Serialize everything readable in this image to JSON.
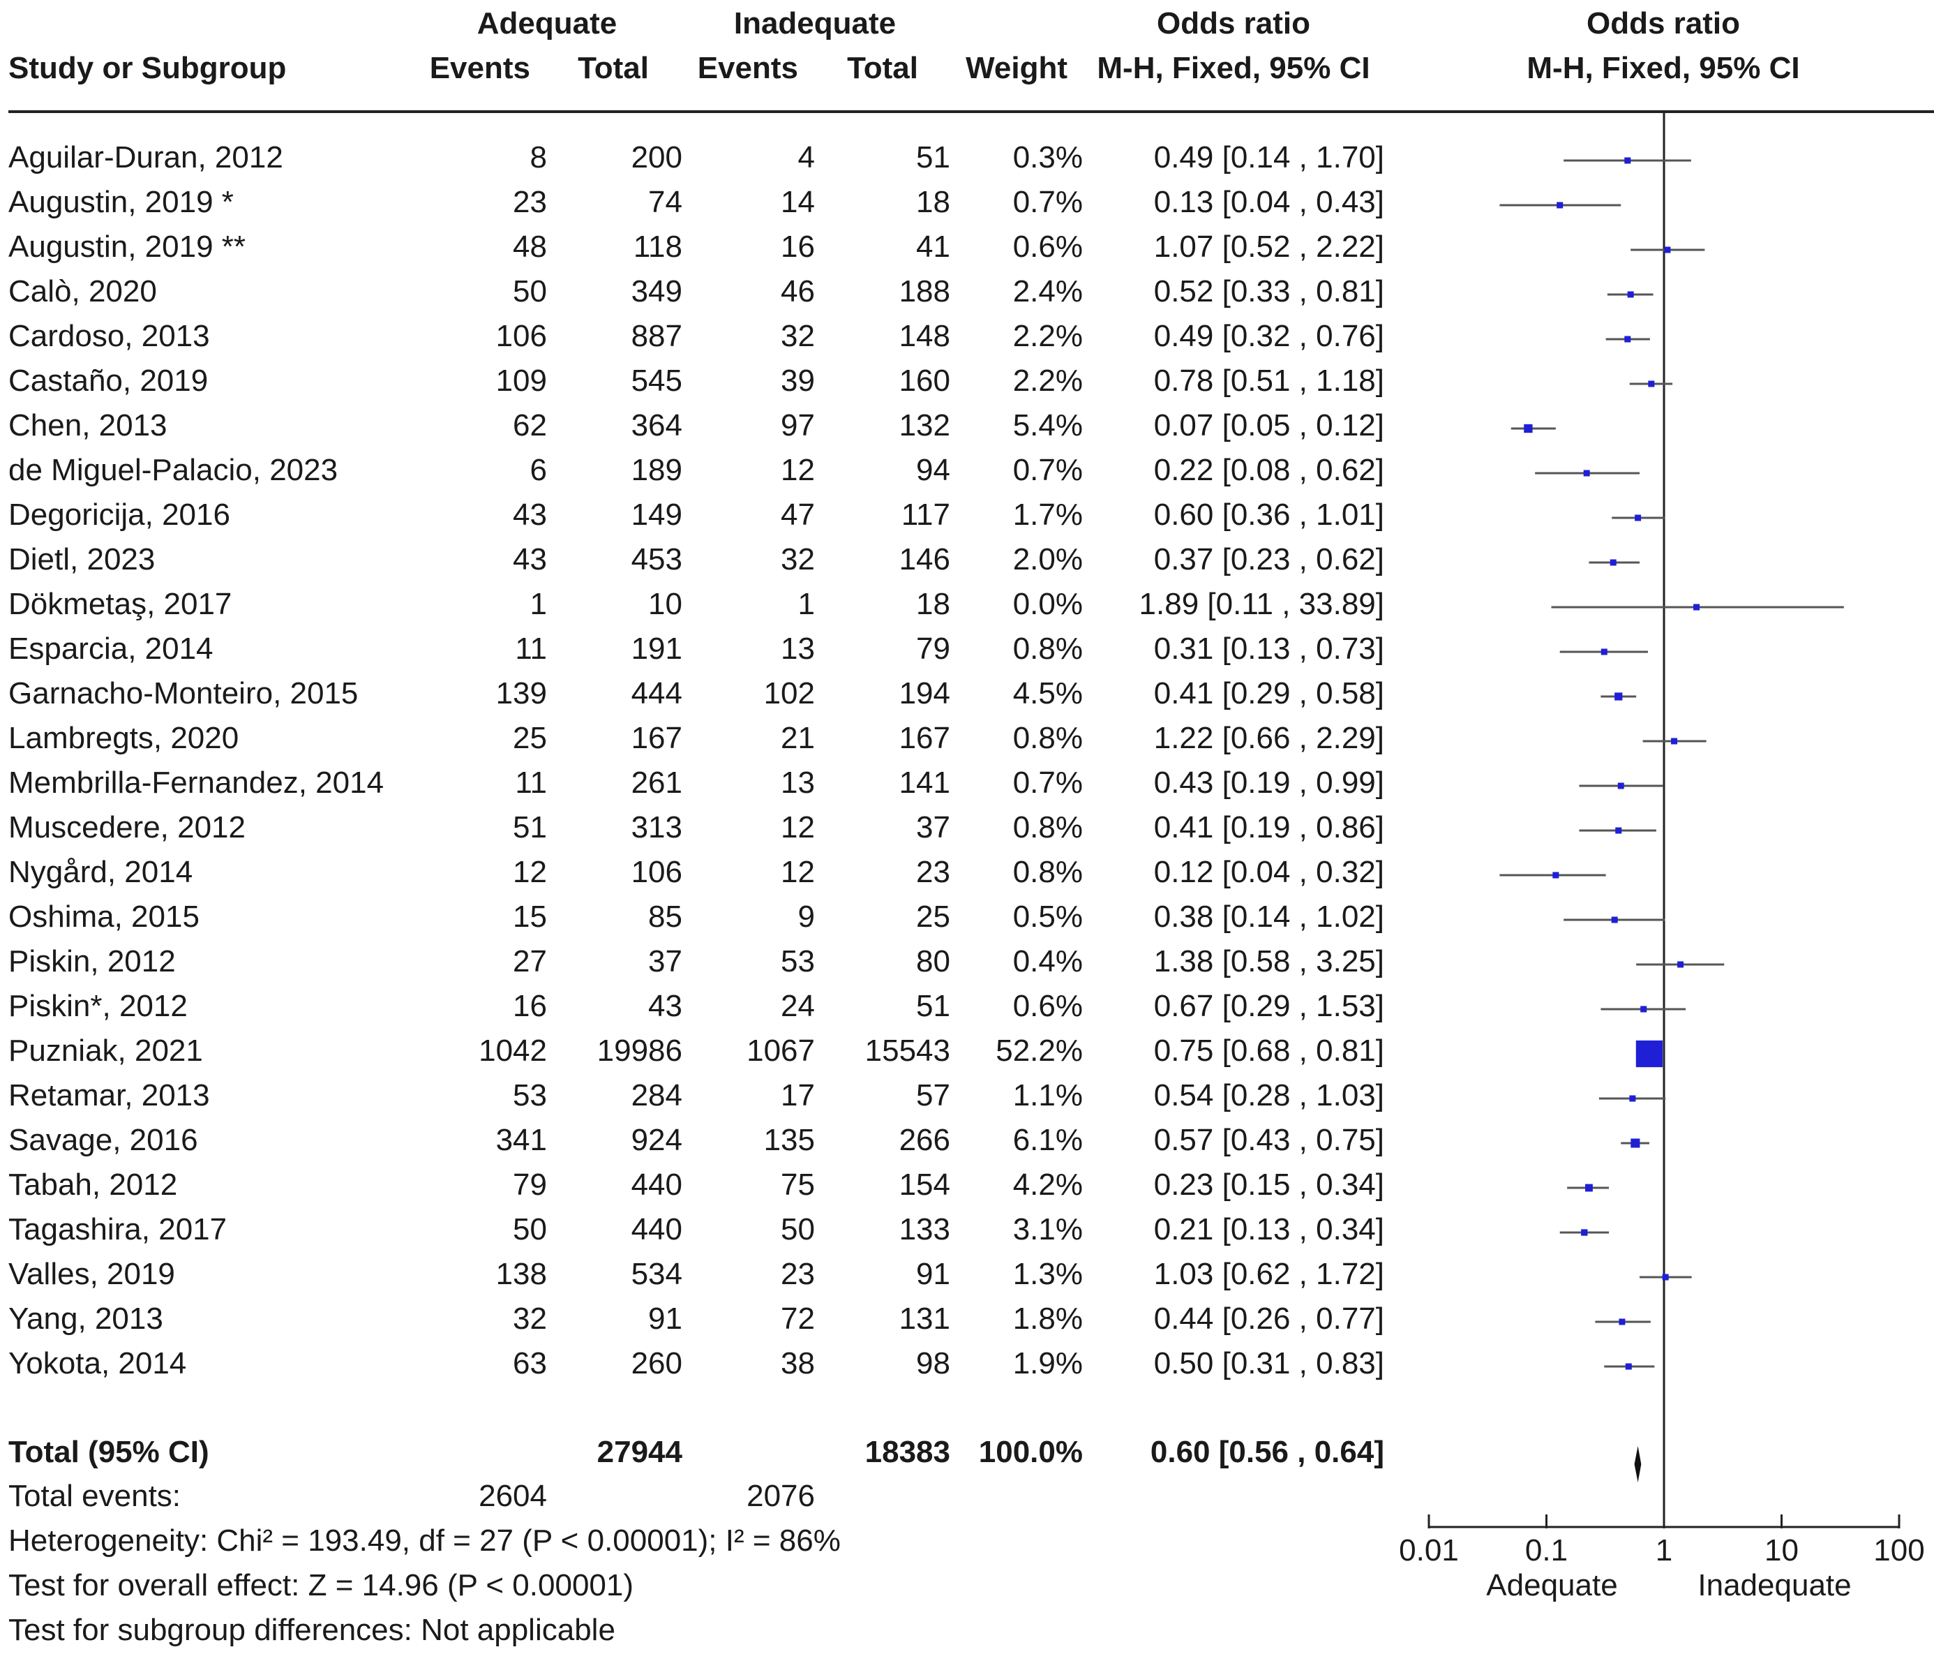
{
  "chart_data": {
    "type": "forest",
    "headers": {
      "study": "Study or Subgroup",
      "adequate": "Adequate",
      "inadequate": "Inadequate",
      "events": "Events",
      "total": "Total",
      "weight": "Weight",
      "or_title": "Odds ratio",
      "or_method": "M-H, Fixed, 95% CI"
    },
    "studies": [
      {
        "name": "Aguilar-Duran, 2012",
        "ae": "8",
        "at": "200",
        "ie": "4",
        "it": "51",
        "weight": "0.3%",
        "ci_text": "0.49 [0.14 , 1.70]",
        "or": 0.49,
        "lo": 0.14,
        "hi": 1.7,
        "w": 0.3
      },
      {
        "name": "Augustin, 2019 *",
        "ae": "23",
        "at": "74",
        "ie": "14",
        "it": "18",
        "weight": "0.7%",
        "ci_text": "0.13 [0.04 , 0.43]",
        "or": 0.13,
        "lo": 0.04,
        "hi": 0.43,
        "w": 0.7
      },
      {
        "name": "Augustin, 2019 **",
        "ae": "48",
        "at": "118",
        "ie": "16",
        "it": "41",
        "weight": "0.6%",
        "ci_text": "1.07 [0.52 , 2.22]",
        "or": 1.07,
        "lo": 0.52,
        "hi": 2.22,
        "w": 0.6
      },
      {
        "name": "Calò, 2020",
        "ae": "50",
        "at": "349",
        "ie": "46",
        "it": "188",
        "weight": "2.4%",
        "ci_text": "0.52 [0.33 , 0.81]",
        "or": 0.52,
        "lo": 0.33,
        "hi": 0.81,
        "w": 2.4
      },
      {
        "name": "Cardoso, 2013",
        "ae": "106",
        "at": "887",
        "ie": "32",
        "it": "148",
        "weight": "2.2%",
        "ci_text": "0.49 [0.32 , 0.76]",
        "or": 0.49,
        "lo": 0.32,
        "hi": 0.76,
        "w": 2.2
      },
      {
        "name": "Castaño, 2019",
        "ae": "109",
        "at": "545",
        "ie": "39",
        "it": "160",
        "weight": "2.2%",
        "ci_text": "0.78 [0.51 , 1.18]",
        "or": 0.78,
        "lo": 0.51,
        "hi": 1.18,
        "w": 2.2
      },
      {
        "name": "Chen, 2013",
        "ae": "62",
        "at": "364",
        "ie": "97",
        "it": "132",
        "weight": "5.4%",
        "ci_text": "0.07 [0.05 , 0.12]",
        "or": 0.07,
        "lo": 0.05,
        "hi": 0.12,
        "w": 5.4
      },
      {
        "name": "de Miguel-Palacio, 2023",
        "ae": "6",
        "at": "189",
        "ie": "12",
        "it": "94",
        "weight": "0.7%",
        "ci_text": "0.22 [0.08 , 0.62]",
        "or": 0.22,
        "lo": 0.08,
        "hi": 0.62,
        "w": 0.7
      },
      {
        "name": "Degoricija, 2016",
        "ae": "43",
        "at": "149",
        "ie": "47",
        "it": "117",
        "weight": "1.7%",
        "ci_text": "0.60 [0.36 , 1.01]",
        "or": 0.6,
        "lo": 0.36,
        "hi": 1.01,
        "w": 1.7
      },
      {
        "name": "Dietl, 2023",
        "ae": "43",
        "at": "453",
        "ie": "32",
        "it": "146",
        "weight": "2.0%",
        "ci_text": "0.37 [0.23 , 0.62]",
        "or": 0.37,
        "lo": 0.23,
        "hi": 0.62,
        "w": 2.0
      },
      {
        "name": "Dökmetaş, 2017",
        "ae": "1",
        "at": "10",
        "ie": "1",
        "it": "18",
        "weight": "0.0%",
        "ci_text": "1.89 [0.11 , 33.89]",
        "or": 1.89,
        "lo": 0.11,
        "hi": 33.89,
        "w": 0.0
      },
      {
        "name": "Esparcia, 2014",
        "ae": "11",
        "at": "191",
        "ie": "13",
        "it": "79",
        "weight": "0.8%",
        "ci_text": "0.31 [0.13 , 0.73]",
        "or": 0.31,
        "lo": 0.13,
        "hi": 0.73,
        "w": 0.8
      },
      {
        "name": "Garnacho-Monteiro, 2015",
        "ae": "139",
        "at": "444",
        "ie": "102",
        "it": "194",
        "weight": "4.5%",
        "ci_text": "0.41 [0.29 , 0.58]",
        "or": 0.41,
        "lo": 0.29,
        "hi": 0.58,
        "w": 4.5
      },
      {
        "name": "Lambregts, 2020",
        "ae": "25",
        "at": "167",
        "ie": "21",
        "it": "167",
        "weight": "0.8%",
        "ci_text": "1.22 [0.66 , 2.29]",
        "or": 1.22,
        "lo": 0.66,
        "hi": 2.29,
        "w": 0.8
      },
      {
        "name": "Membrilla-Fernandez, 2014",
        "ae": "11",
        "at": "261",
        "ie": "13",
        "it": "141",
        "weight": "0.7%",
        "ci_text": "0.43 [0.19 , 0.99]",
        "or": 0.43,
        "lo": 0.19,
        "hi": 0.99,
        "w": 0.7
      },
      {
        "name": "Muscedere, 2012",
        "ae": "51",
        "at": "313",
        "ie": "12",
        "it": "37",
        "weight": "0.8%",
        "ci_text": "0.41 [0.19 , 0.86]",
        "or": 0.41,
        "lo": 0.19,
        "hi": 0.86,
        "w": 0.8
      },
      {
        "name": "Nygård, 2014",
        "ae": "12",
        "at": "106",
        "ie": "12",
        "it": "23",
        "weight": "0.8%",
        "ci_text": "0.12 [0.04 , 0.32]",
        "or": 0.12,
        "lo": 0.04,
        "hi": 0.32,
        "w": 0.8
      },
      {
        "name": "Oshima, 2015",
        "ae": "15",
        "at": "85",
        "ie": "9",
        "it": "25",
        "weight": "0.5%",
        "ci_text": "0.38 [0.14 , 1.02]",
        "or": 0.38,
        "lo": 0.14,
        "hi": 1.02,
        "w": 0.5
      },
      {
        "name": "Piskin, 2012",
        "ae": "27",
        "at": "37",
        "ie": "53",
        "it": "80",
        "weight": "0.4%",
        "ci_text": "1.38 [0.58 , 3.25]",
        "or": 1.38,
        "lo": 0.58,
        "hi": 3.25,
        "w": 0.4
      },
      {
        "name": "Piskin*, 2012",
        "ae": "16",
        "at": "43",
        "ie": "24",
        "it": "51",
        "weight": "0.6%",
        "ci_text": "0.67 [0.29 , 1.53]",
        "or": 0.67,
        "lo": 0.29,
        "hi": 1.53,
        "w": 0.6
      },
      {
        "name": "Puzniak, 2021",
        "ae": "1042",
        "at": "19986",
        "ie": "1067",
        "it": "15543",
        "weight": "52.2%",
        "ci_text": "0.75 [0.68 , 0.81]",
        "or": 0.75,
        "lo": 0.68,
        "hi": 0.81,
        "w": 52.2
      },
      {
        "name": "Retamar, 2013",
        "ae": "53",
        "at": "284",
        "ie": "17",
        "it": "57",
        "weight": "1.1%",
        "ci_text": "0.54 [0.28 , 1.03]",
        "or": 0.54,
        "lo": 0.28,
        "hi": 1.03,
        "w": 1.1
      },
      {
        "name": "Savage, 2016",
        "ae": "341",
        "at": "924",
        "ie": "135",
        "it": "266",
        "weight": "6.1%",
        "ci_text": "0.57 [0.43 , 0.75]",
        "or": 0.57,
        "lo": 0.43,
        "hi": 0.75,
        "w": 6.1
      },
      {
        "name": "Tabah, 2012",
        "ae": "79",
        "at": "440",
        "ie": "75",
        "it": "154",
        "weight": "4.2%",
        "ci_text": "0.23 [0.15 , 0.34]",
        "or": 0.23,
        "lo": 0.15,
        "hi": 0.34,
        "w": 4.2
      },
      {
        "name": "Tagashira, 2017",
        "ae": "50",
        "at": "440",
        "ie": "50",
        "it": "133",
        "weight": "3.1%",
        "ci_text": "0.21 [0.13 , 0.34]",
        "or": 0.21,
        "lo": 0.13,
        "hi": 0.34,
        "w": 3.1
      },
      {
        "name": "Valles, 2019",
        "ae": "138",
        "at": "534",
        "ie": "23",
        "it": "91",
        "weight": "1.3%",
        "ci_text": "1.03 [0.62 , 1.72]",
        "or": 1.03,
        "lo": 0.62,
        "hi": 1.72,
        "w": 1.3
      },
      {
        "name": "Yang, 2013",
        "ae": "32",
        "at": "91",
        "ie": "72",
        "it": "131",
        "weight": "1.8%",
        "ci_text": "0.44 [0.26 , 0.77]",
        "or": 0.44,
        "lo": 0.26,
        "hi": 0.77,
        "w": 1.8
      },
      {
        "name": "Yokota, 2014",
        "ae": "63",
        "at": "260",
        "ie": "38",
        "it": "98",
        "weight": "1.9%",
        "ci_text": "0.50 [0.31 , 0.83]",
        "or": 0.5,
        "lo": 0.31,
        "hi": 0.83,
        "w": 1.9
      }
    ],
    "total": {
      "label": "Total (95% CI)",
      "at": "27944",
      "it": "18383",
      "weight": "100.0%",
      "ci_text": "0.60 [0.56 , 0.64]",
      "or": 0.6,
      "lo": 0.56,
      "hi": 0.64
    },
    "total_events": {
      "label": "Total events:",
      "adequate": "2604",
      "inadequate": "2076"
    },
    "footer": {
      "heterogeneity": "Heterogeneity: Chi² = 193.49, df = 27 (P < 0.00001); I² = 86%",
      "overall": "Test for overall effect: Z = 14.96 (P < 0.00001)",
      "subgroup": "Test for subgroup differences: Not applicable"
    },
    "axis": {
      "scale": "log",
      "range": [
        0.01,
        100
      ],
      "ticks": [
        0.01,
        0.1,
        1,
        10,
        100
      ],
      "tick_labels": [
        "0.01",
        "0.1",
        "1",
        "10",
        "100"
      ],
      "left_label": "Adequate",
      "right_label": "Inadequate",
      "null_value": 1
    },
    "colors": {
      "marker": "#1f1fd6",
      "line": "#555555",
      "axis": "#222222"
    }
  }
}
